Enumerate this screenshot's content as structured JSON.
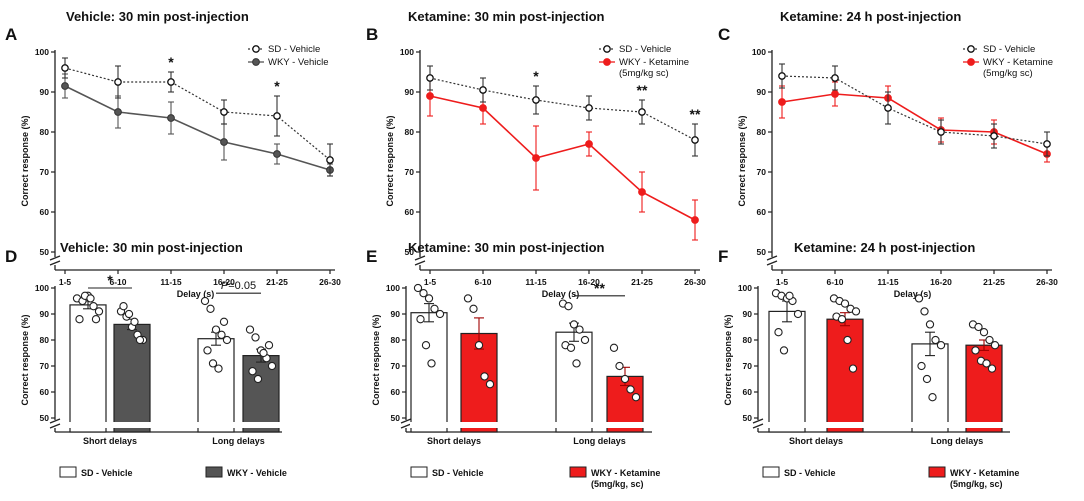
{
  "colors": {
    "sd": "#ffffff",
    "wky_vehicle": "#555555",
    "ketamine": "#ee1c1c",
    "axis": "#222222"
  },
  "chart_data": [
    {
      "panel": "A",
      "type": "line",
      "title": "Vehicle: 30 min post-injection",
      "xlabel": "Delay (s)",
      "ylabel": "Correct response (%)",
      "categories": [
        "1-5",
        "6-10",
        "11-15",
        "16-20",
        "21-25",
        "26-30"
      ],
      "ylim": [
        50,
        100
      ],
      "yticks": [
        "50",
        "60",
        "70",
        "80",
        "90",
        "100"
      ],
      "series": [
        {
          "name": "SD - Vehicle",
          "style": "dotted-open",
          "values": [
            96,
            92.5,
            92.5,
            85,
            84,
            73
          ],
          "errors": [
            2.5,
            4,
            2.5,
            3,
            5,
            4
          ]
        },
        {
          "name": "WKY - Vehicle",
          "style": "solid-grey",
          "values": [
            91.5,
            85,
            83.5,
            77.5,
            74.5,
            70.5
          ],
          "errors": [
            3,
            4,
            4,
            4.5,
            2.5,
            1.5
          ]
        }
      ],
      "significance": [
        {
          "category": "11-15",
          "label": "*"
        },
        {
          "category": "21-25",
          "label": "*"
        }
      ]
    },
    {
      "panel": "B",
      "type": "line",
      "title": "Ketamine: 30 min post-injection",
      "xlabel": "Delay (s)",
      "ylabel": "Correct response (%)",
      "categories": [
        "1-5",
        "6-10",
        "11-15",
        "16-20",
        "21-25",
        "26-30"
      ],
      "ylim": [
        50,
        100
      ],
      "yticks": [
        "50",
        "60",
        "70",
        "80",
        "90",
        "100"
      ],
      "series": [
        {
          "name": "SD - Vehicle",
          "style": "dotted-open",
          "values": [
            93.5,
            90.5,
            88,
            86,
            85,
            78
          ],
          "errors": [
            3,
            3,
            3.5,
            3,
            3,
            4
          ]
        },
        {
          "name": "WKY - Ketamine",
          "name2": "(5mg/kg sc)",
          "style": "solid-red",
          "values": [
            89,
            86,
            73.5,
            77,
            65,
            58
          ],
          "errors": [
            5,
            4,
            8,
            3,
            5,
            5
          ]
        }
      ],
      "significance": [
        {
          "category": "11-15",
          "label": "*"
        },
        {
          "category": "21-25",
          "label": "**"
        },
        {
          "category": "26-30",
          "label": "**"
        }
      ]
    },
    {
      "panel": "C",
      "type": "line",
      "title": "Ketamine: 24 h post-injection",
      "xlabel": "Delay (s)",
      "ylabel": "Correct response (%)",
      "categories": [
        "1-5",
        "6-10",
        "11-15",
        "16-20",
        "21-25",
        "26-30"
      ],
      "ylim": [
        50,
        100
      ],
      "yticks": [
        "50",
        "60",
        "70",
        "80",
        "90",
        "100"
      ],
      "series": [
        {
          "name": "SD - Vehicle",
          "style": "dotted-open",
          "values": [
            94,
            93.5,
            86,
            80,
            79,
            77
          ],
          "errors": [
            3,
            3,
            4,
            3,
            3,
            3
          ]
        },
        {
          "name": "WKY - Ketamine",
          "name2": "(5mg/kg sc)",
          "style": "solid-red",
          "values": [
            87.5,
            89.5,
            88.5,
            80.5,
            80,
            74.5
          ],
          "errors": [
            4,
            3,
            3,
            3,
            3,
            2
          ]
        }
      ],
      "significance": []
    },
    {
      "panel": "D",
      "type": "bar",
      "title": "Vehicle: 30 min post-injection",
      "ylabel": "Correct response (%)",
      "categories": [
        "Short delays",
        "Long delays"
      ],
      "ylim": [
        50,
        100
      ],
      "yticks": [
        "50",
        "60",
        "70",
        "80",
        "90",
        "100"
      ],
      "series": [
        {
          "name": "SD - Vehicle",
          "fill": "white",
          "values": [
            93.5,
            80.5
          ],
          "errors": [
            1.5,
            2.5
          ],
          "points": [
            [
              96,
              95,
              97,
              93,
              91,
              88,
              97,
              96,
              88
            ],
            [
              95,
              92,
              84,
              82,
              80,
              76,
              71,
              69,
              87
            ]
          ]
        },
        {
          "name": "WKY - Vehicle",
          "fill": "grey",
          "values": [
            86,
            74
          ],
          "errors": [
            2,
            2.5
          ],
          "points": [
            [
              91,
              89,
              85,
              82,
              80,
              93,
              90,
              87,
              80
            ],
            [
              84,
              81,
              76,
              73,
              70,
              68,
              65,
              75,
              78
            ]
          ]
        }
      ],
      "comparisons": [
        {
          "category": "Short delays",
          "label": "*"
        },
        {
          "category": "Long delays",
          "label": "P=0.05"
        }
      ]
    },
    {
      "panel": "E",
      "type": "bar",
      "title": "Ketamine: 30 min post-injection",
      "ylabel": "Correct response (%)",
      "categories": [
        "Short delays",
        "Long delays"
      ],
      "ylim": [
        50,
        100
      ],
      "yticks": [
        "50",
        "60",
        "70",
        "80",
        "90",
        "100"
      ],
      "series": [
        {
          "name": "SD - Vehicle",
          "fill": "white",
          "values": [
            90.5,
            83
          ],
          "errors": [
            3.5,
            3.5
          ],
          "points": [
            [
              100,
              98,
              96,
              92,
              90,
              88,
              78,
              71
            ],
            [
              94,
              93,
              86,
              84,
              80,
              78,
              77,
              71
            ]
          ]
        },
        {
          "name": "WKY - Ketamine",
          "name2": "(5mg/kg, sc)",
          "fill": "red",
          "values": [
            82.5,
            66
          ],
          "errors": [
            6,
            3.5
          ],
          "points": [
            [
              96,
              92,
              78,
              66,
              63
            ],
            [
              77,
              70,
              65,
              61,
              58
            ]
          ]
        }
      ],
      "comparisons": [
        {
          "category": "Long delays",
          "label": "**"
        }
      ]
    },
    {
      "panel": "F",
      "type": "bar",
      "title": "Ketamine: 24 h post-injection",
      "ylabel": "Correct response (%)",
      "categories": [
        "Short delays",
        "Long delays"
      ],
      "ylim": [
        50,
        100
      ],
      "yticks": [
        "50",
        "60",
        "70",
        "80",
        "90",
        "100"
      ],
      "series": [
        {
          "name": "SD - Vehicle",
          "fill": "white",
          "values": [
            91,
            78.5
          ],
          "errors": [
            4,
            4.5
          ],
          "points": [
            [
              98,
              97,
              96,
              95,
              90,
              83,
              76,
              97
            ],
            [
              96,
              91,
              86,
              80,
              78,
              70,
              65,
              58
            ]
          ]
        },
        {
          "name": "WKY - Ketamine",
          "name2": "(5mg/kg, sc)",
          "fill": "red",
          "values": [
            88,
            78
          ],
          "errors": [
            2.5,
            2
          ],
          "points": [
            [
              96,
              95,
              94,
              92,
              91,
              89,
              88,
              80,
              69
            ],
            [
              86,
              85,
              83,
              80,
              78,
              76,
              72,
              71,
              69
            ]
          ]
        }
      ],
      "comparisons": []
    }
  ]
}
